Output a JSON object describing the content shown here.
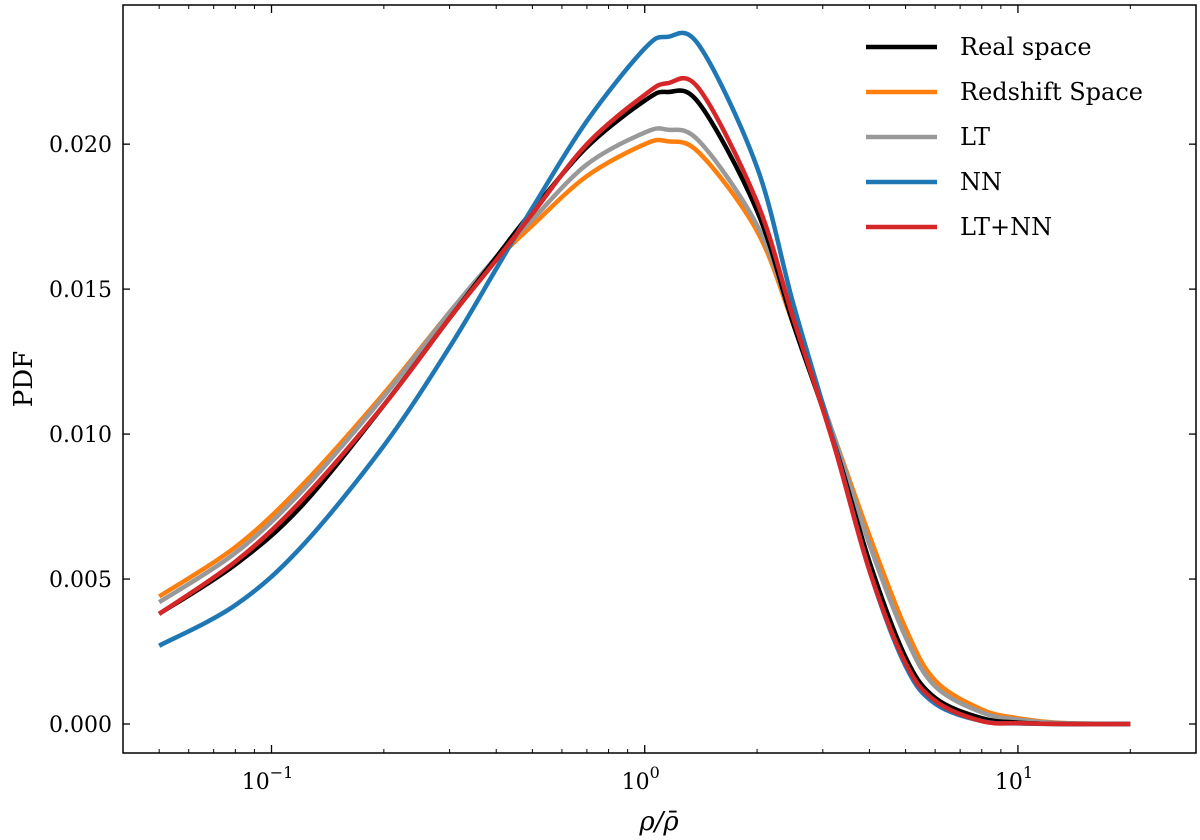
{
  "chart_data": {
    "type": "line",
    "title": "",
    "xlabel": "ρ/ρ̄",
    "ylabel": "PDF",
    "xscale": "log",
    "xlim": [
      0.04,
      30
    ],
    "ylim": [
      -0.001,
      0.0248
    ],
    "xticks": [
      {
        "value": 0.1,
        "base": "10",
        "exp": "−1"
      },
      {
        "value": 1,
        "base": "10",
        "exp": "0"
      },
      {
        "value": 10,
        "base": "10",
        "exp": "1"
      }
    ],
    "yticks": [
      {
        "value": 0.0,
        "label": "0.000"
      },
      {
        "value": 0.005,
        "label": "0.005"
      },
      {
        "value": 0.01,
        "label": "0.010"
      },
      {
        "value": 0.015,
        "label": "0.015"
      },
      {
        "value": 0.02,
        "label": "0.020"
      }
    ],
    "legend_position": "top-right",
    "x": [
      0.05,
      0.08,
      0.12,
      0.2,
      0.3,
      0.4,
      0.5,
      0.7,
      1.0,
      1.15,
      1.4,
      2.0,
      2.5,
      3.2,
      4.0,
      5.0,
      6.0,
      8.0,
      10.0,
      13.0,
      20.0
    ],
    "series": [
      {
        "name": "Real space",
        "color": "#000000",
        "values": [
          0.0038,
          0.0055,
          0.0075,
          0.011,
          0.014,
          0.0161,
          0.0177,
          0.0199,
          0.0215,
          0.0218,
          0.0214,
          0.0177,
          0.0138,
          0.0098,
          0.0056,
          0.0023,
          0.0009,
          0.0002,
          5e-05,
          0.0,
          0.0
        ]
      },
      {
        "name": "Redshift Space",
        "color": "#ff7f0e",
        "values": [
          0.0044,
          0.0061,
          0.0082,
          0.0114,
          0.0142,
          0.016,
          0.0172,
          0.0189,
          0.02,
          0.0201,
          0.0197,
          0.017,
          0.0138,
          0.01,
          0.0065,
          0.0033,
          0.0015,
          0.0005,
          0.0002,
          4e-05,
          0.0
        ]
      },
      {
        "name": "LT",
        "color": "#999999",
        "values": [
          0.0042,
          0.0059,
          0.008,
          0.0113,
          0.0142,
          0.0161,
          0.0174,
          0.0193,
          0.0204,
          0.0205,
          0.0201,
          0.0172,
          0.0139,
          0.01,
          0.0062,
          0.003,
          0.0013,
          0.0004,
          0.00015,
          3e-05,
          0.0
        ]
      },
      {
        "name": "NN",
        "color": "#1f77b4",
        "values": [
          0.0027,
          0.0041,
          0.0061,
          0.0096,
          0.013,
          0.0157,
          0.0178,
          0.0208,
          0.0233,
          0.0237,
          0.0234,
          0.0192,
          0.0145,
          0.0098,
          0.0053,
          0.002,
          0.0007,
          0.0001,
          2e-05,
          0.0,
          0.0
        ]
      },
      {
        "name": "LT+NN",
        "color": "#d62728",
        "values": [
          0.0038,
          0.0056,
          0.0077,
          0.011,
          0.014,
          0.016,
          0.0176,
          0.02,
          0.0217,
          0.0221,
          0.0219,
          0.018,
          0.014,
          0.0097,
          0.0053,
          0.0021,
          0.0008,
          0.0001,
          3e-05,
          0.0,
          0.0
        ]
      }
    ]
  }
}
